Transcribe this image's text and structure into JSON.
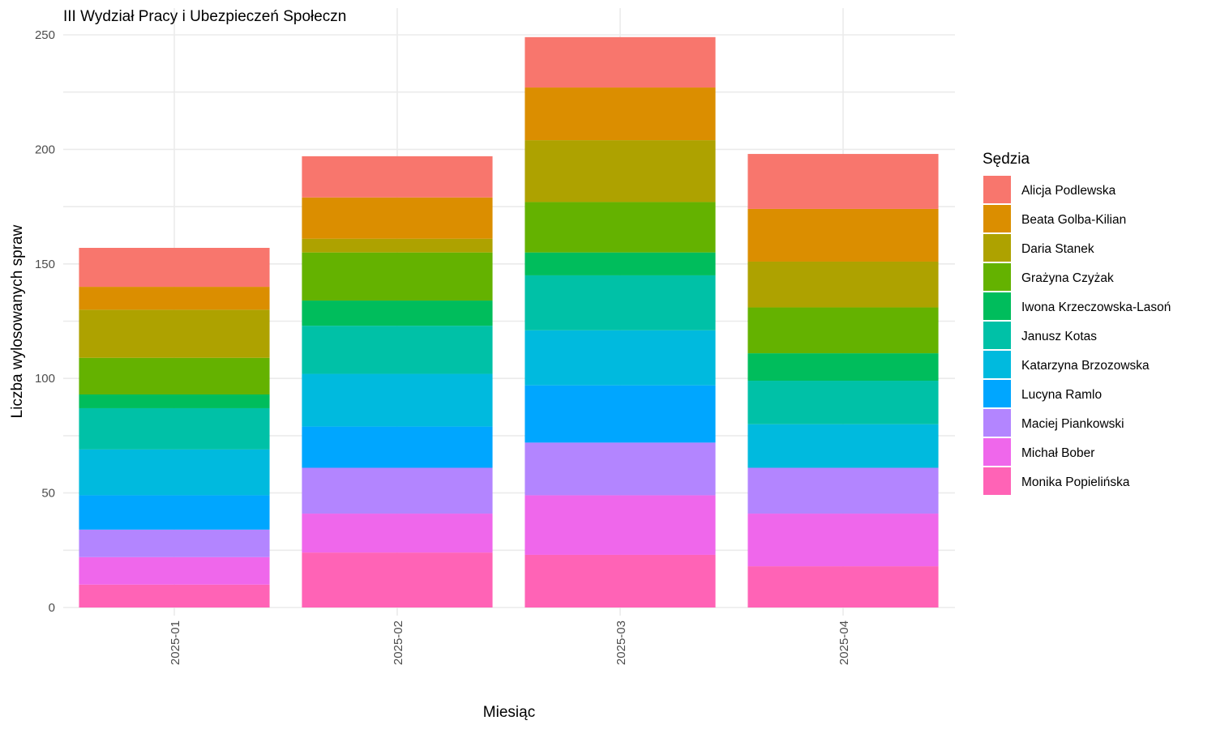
{
  "chart_data": {
    "type": "bar",
    "stacked": true,
    "title": "III Wydział Pracy i Ubezpieczeń Społeczn",
    "xlabel": "Miesiąc",
    "ylabel": "Liczba wylosowanych spraw",
    "ylim": [
      0,
      250
    ],
    "yticks": [
      "0",
      "50",
      "100",
      "150",
      "200",
      "250"
    ],
    "grid": true,
    "legend_title": "Sędzia",
    "legend_position": "right",
    "categories": [
      "2025-01",
      "2025-02",
      "2025-03",
      "2025-04"
    ],
    "series": [
      {
        "name": "Alicja Podlewska",
        "color": "#F8766D",
        "values": [
          17,
          18,
          22,
          24
        ]
      },
      {
        "name": "Beata Golba-Kilian",
        "color": "#DB8E00",
        "values": [
          10,
          18,
          23,
          23
        ]
      },
      {
        "name": "Daria Stanek",
        "color": "#AEA200",
        "values": [
          21,
          6,
          27,
          20
        ]
      },
      {
        "name": "Grażyna Czyżak",
        "color": "#64B200",
        "values": [
          16,
          21,
          22,
          20
        ]
      },
      {
        "name": "Iwona Krzeczowska-Lasoń",
        "color": "#00BD5C",
        "values": [
          6,
          11,
          10,
          12
        ]
      },
      {
        "name": "Janusz Kotas",
        "color": "#00C1A7",
        "values": [
          18,
          21,
          24,
          19
        ]
      },
      {
        "name": "Katarzyna Brzozowska",
        "color": "#00BADE",
        "values": [
          20,
          23,
          24,
          19
        ]
      },
      {
        "name": "Lucyna Ramlo",
        "color": "#00A6FF",
        "values": [
          15,
          18,
          25,
          0
        ]
      },
      {
        "name": "Maciej Piankowski",
        "color": "#B385FF",
        "values": [
          12,
          20,
          23,
          20
        ]
      },
      {
        "name": "Michał Bober",
        "color": "#EF67EB",
        "values": [
          12,
          17,
          26,
          23
        ]
      },
      {
        "name": "Monika Popielińska",
        "color": "#FF63B6",
        "values": [
          10,
          24,
          23,
          18
        ]
      }
    ]
  }
}
